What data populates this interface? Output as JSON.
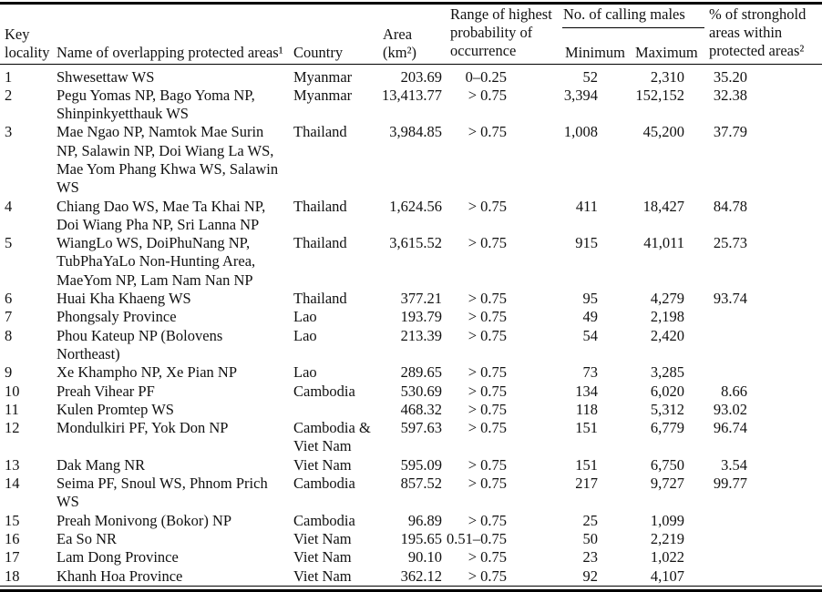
{
  "table": {
    "header": {
      "key_line1": "Key",
      "key_line2": "locality",
      "name": "Name of overlapping protected areas¹",
      "country": "Country",
      "area_line1": "Area",
      "area_line2": "(km²)",
      "range": "Range of highest probability of occurrence",
      "calling_males_group": "No. of calling males",
      "minimum": "Minimum",
      "maximum": "Maximum",
      "stronghold": "% of stronghold areas within protected areas²"
    },
    "rows": [
      {
        "key": "1",
        "name": "Shwesettaw WS",
        "country": "Myanmar",
        "area": "203.69",
        "range": "0–0.25",
        "min": "52",
        "max": "2,310",
        "pct": "35.20"
      },
      {
        "key": "2",
        "name": "Pegu Yomas NP, Bago Yoma NP, Shinpinkyetthauk WS",
        "country": "Myanmar",
        "area": "13,413.77",
        "range": "> 0.75",
        "min": "3,394",
        "max": "152,152",
        "pct": "32.38"
      },
      {
        "key": "3",
        "name": "Mae Ngao NP, Namtok Mae Surin NP, Salawin NP, Doi Wiang La WS, Mae Yom Phang Khwa WS, Salawin WS",
        "country": "Thailand",
        "area": "3,984.85",
        "range": "> 0.75",
        "min": "1,008",
        "max": "45,200",
        "pct": "37.79"
      },
      {
        "key": "4",
        "name": "Chiang Dao WS, Mae Ta Khai NP, Doi Wiang Pha NP, Sri Lanna NP",
        "country": "Thailand",
        "area": "1,624.56",
        "range": "> 0.75",
        "min": "411",
        "max": "18,427",
        "pct": "84.78"
      },
      {
        "key": "5",
        "name": "WiangLo WS, DoiPhuNang NP, TubPhaYaLo Non-Hunting Area, MaeYom NP, Lam Nam Nan NP",
        "country": "Thailand",
        "area": "3,615.52",
        "range": "> 0.75",
        "min": "915",
        "max": "41,011",
        "pct": "25.73"
      },
      {
        "key": "6",
        "name": "Huai Kha Khaeng WS",
        "country": "Thailand",
        "area": "377.21",
        "range": "> 0.75",
        "min": "95",
        "max": "4,279",
        "pct": "93.74"
      },
      {
        "key": "7",
        "name": "Phongsaly Province",
        "country": "Lao",
        "area": "193.79",
        "range": "> 0.75",
        "min": "49",
        "max": "2,198",
        "pct": ""
      },
      {
        "key": "8",
        "name": "Phou Kateup NP (Bolovens Northeast)",
        "country": "Lao",
        "area": "213.39",
        "range": "> 0.75",
        "min": "54",
        "max": "2,420",
        "pct": ""
      },
      {
        "key": "9",
        "name": "Xe Khampho NP, Xe Pian NP",
        "country": "Lao",
        "area": "289.65",
        "range": "> 0.75",
        "min": "73",
        "max": "3,285",
        "pct": ""
      },
      {
        "key": "10",
        "name": "Preah Vihear PF",
        "country": "Cambodia",
        "area": "530.69",
        "range": "> 0.75",
        "min": "134",
        "max": "6,020",
        "pct": "8.66"
      },
      {
        "key": "11",
        "name": "Kulen Promtep WS",
        "country": "",
        "area": "468.32",
        "range": "> 0.75",
        "min": "118",
        "max": "5,312",
        "pct": "93.02"
      },
      {
        "key": "12",
        "name": "Mondulkiri PF, Yok Don NP",
        "country": "Cambodia & Viet Nam",
        "area": "597.63",
        "range": "> 0.75",
        "min": "151",
        "max": "6,779",
        "pct": "96.74"
      },
      {
        "key": "13",
        "name": "Dak Mang NR",
        "country": "Viet Nam",
        "area": "595.09",
        "range": "> 0.75",
        "min": "151",
        "max": "6,750",
        "pct": "3.54"
      },
      {
        "key": "14",
        "name": "Seima PF, Snoul WS, Phnom Prich WS",
        "country": "Cambodia",
        "area": "857.52",
        "range": "> 0.75",
        "min": "217",
        "max": "9,727",
        "pct": "99.77"
      },
      {
        "key": "15",
        "name": "Preah Monivong (Bokor) NP",
        "country": "Cambodia",
        "area": "96.89",
        "range": "> 0.75",
        "min": "25",
        "max": "1,099",
        "pct": ""
      },
      {
        "key": "16",
        "name": "Ea So NR",
        "country": "Viet Nam",
        "area": "195.65",
        "range": "0.51–0.75",
        "min": "50",
        "max": "2,219",
        "pct": ""
      },
      {
        "key": "17",
        "name": "Lam Dong Province",
        "country": "Viet Nam",
        "area": "90.10",
        "range": "> 0.75",
        "min": "23",
        "max": "1,022",
        "pct": ""
      },
      {
        "key": "18",
        "name": "Khanh Hoa Province",
        "country": "Viet Nam",
        "area": "362.12",
        "range": "> 0.75",
        "min": "92",
        "max": "4,107",
        "pct": ""
      }
    ]
  }
}
